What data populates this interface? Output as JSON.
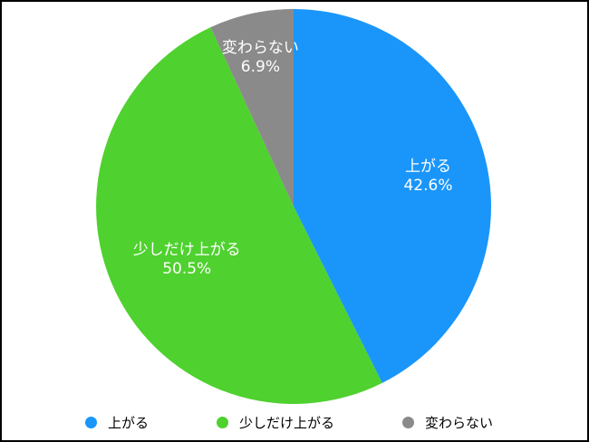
{
  "chart_data": {
    "type": "pie",
    "title": "",
    "start_angle": "12 o'clock",
    "direction": "clockwise",
    "legend_position": "bottom",
    "slices": [
      {
        "label": "上がる",
        "value": 42.6,
        "value_label": "42.6%",
        "color": "#1A96FA"
      },
      {
        "label": "少しだけ上がる",
        "value": 50.5,
        "value_label": "50.5%",
        "color": "#4FD12F"
      },
      {
        "label": "変わらない",
        "value": 6.9,
        "value_label": "6.9%",
        "color": "#8A8A8A"
      }
    ]
  }
}
